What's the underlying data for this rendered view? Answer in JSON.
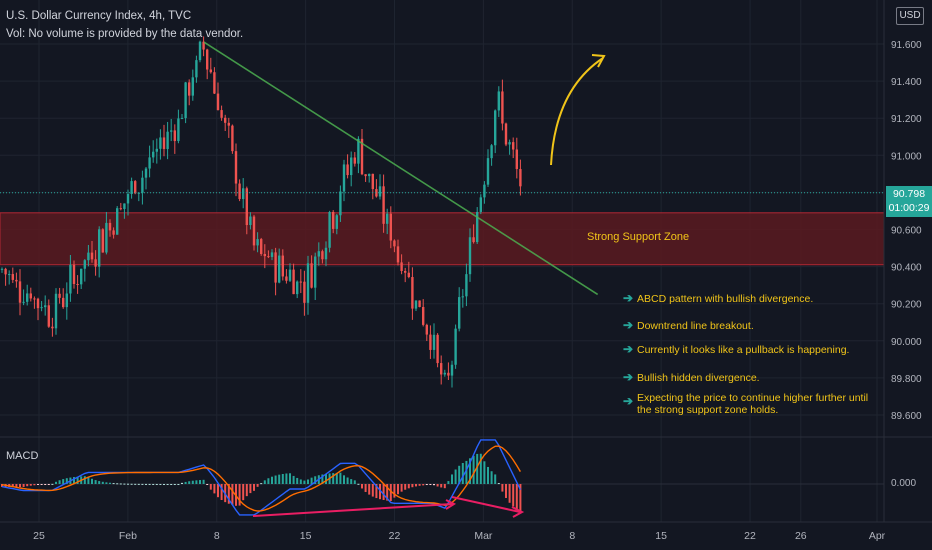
{
  "header": {
    "title": "U.S. Dollar Currency Index, 4h, TVC",
    "volume_note": "Vol: No volume is provided by the data vendor."
  },
  "currency_badge": "USD",
  "price_label": {
    "value": "90.798",
    "countdown": "01:00:29"
  },
  "zone_label": "Strong Support Zone",
  "macd_label": "MACD",
  "notes": [
    {
      "text": "ABCD pattern with bullish divergence."
    },
    {
      "text": "Downtrend line breakout."
    },
    {
      "text": "Currently it looks like a pullback is happening."
    },
    {
      "text": "Bullish hidden divergence."
    },
    {
      "text": "Expecting the price to continue higher further until",
      "text2": "the strong support zone holds."
    }
  ],
  "colors": {
    "background": "#131722",
    "up": "#26a69a",
    "down": "#ef5350",
    "zone_fill": "#5a1a20",
    "zone_border": "#b22833",
    "trendline": "#4caf50",
    "annotation": "#f0c419",
    "macd_line": "#2962ff",
    "signal_line": "#ff6d00",
    "divergence": "#e91e63"
  },
  "chart_data": [
    {
      "type": "candlestick",
      "title": "U.S. Dollar Currency Index, 4h, TVC",
      "y_axis": {
        "ticks": [
          89.6,
          89.8,
          90.0,
          90.2,
          90.4,
          90.6,
          90.8,
          91.0,
          91.2,
          91.4,
          91.6
        ],
        "tick_labels": [
          "89.600",
          "89.800",
          "90.000",
          "90.200",
          "90.400",
          "90.600",
          "90.800",
          "91.000",
          "91.200",
          "91.400",
          "91.600"
        ],
        "ylim": [
          89.55,
          91.8
        ]
      },
      "x_axis": {
        "ticks": [
          "25",
          "Feb",
          "8",
          "15",
          "22",
          "Mar",
          "8",
          "15",
          "22",
          "26",
          "Apr"
        ]
      },
      "last_price": 90.798,
      "support_zone": {
        "low": 90.41,
        "high": 90.69,
        "label": "Strong Support Zone"
      },
      "trendline": {
        "from": {
          "date": "Feb 7",
          "price": 91.61
        },
        "to": {
          "date": "Mar 10",
          "price": 90.25
        }
      },
      "swing_points": [
        {
          "date": "Jan 21",
          "price": 90.45
        },
        {
          "date": "Jan 26",
          "price": 90.15
        },
        {
          "date": "Feb 5",
          "price": 91.2
        },
        {
          "date": "Feb 7",
          "price": 91.6
        },
        {
          "date": "Feb 11",
          "price": 90.48
        },
        {
          "date": "Feb 15",
          "price": 90.3
        },
        {
          "date": "Feb 19",
          "price": 91.05
        },
        {
          "date": "Feb 25",
          "price": 90.0
        },
        {
          "date": "Feb 26",
          "price": 89.7
        },
        {
          "date": "Mar 2",
          "price": 91.3
        },
        {
          "date": "Mar 4",
          "price": 90.8
        }
      ]
    },
    {
      "type": "line",
      "title": "MACD",
      "y_axis": {
        "ticks": [
          0.0
        ],
        "tick_labels": [
          "0.000"
        ]
      },
      "series": [
        {
          "name": "MACD"
        },
        {
          "name": "Signal"
        }
      ]
    }
  ]
}
